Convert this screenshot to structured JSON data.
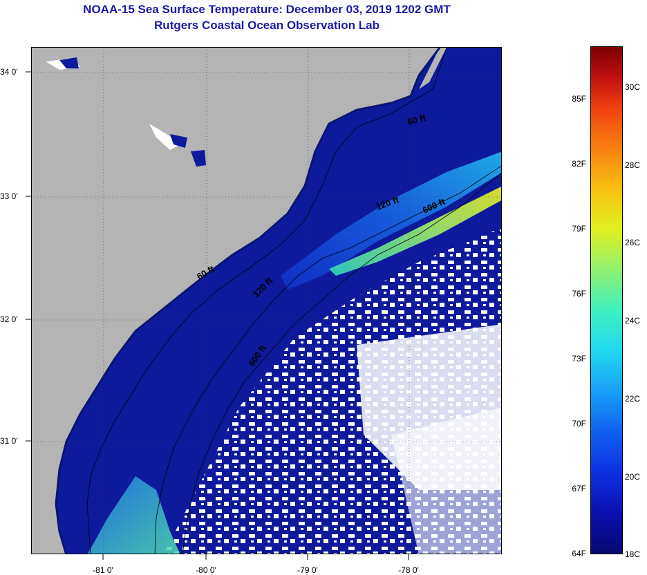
{
  "title": "NOAA-15 Sea Surface Temperature:  December 03, 2019 1202 GMT",
  "subtitle": "Rutgers Coastal Ocean Observation Lab",
  "lat_labels": [
    "34 0'",
    "33 0'",
    "32 0'",
    "31 0'"
  ],
  "lon_labels": [
    "-81 0'",
    "-80 0'",
    "-79 0'",
    "-78 0'"
  ],
  "contour_labels": [
    "60 ft",
    "120 ft",
    "600 ft",
    "60 ft",
    "120 ft",
    "600 ft"
  ],
  "colorbar": {
    "fahrenheit": [
      "85F",
      "82F",
      "79F",
      "76F",
      "73F",
      "70F",
      "67F",
      "64F"
    ],
    "celsius": [
      "30C",
      "28C",
      "26C",
      "24C",
      "22C",
      "20C",
      "18C"
    ]
  },
  "colors": {
    "land": "#b4b4b4",
    "deep_water": "#0d1a9c",
    "cloud": "#ffffff",
    "title": "#1a1aa6"
  }
}
